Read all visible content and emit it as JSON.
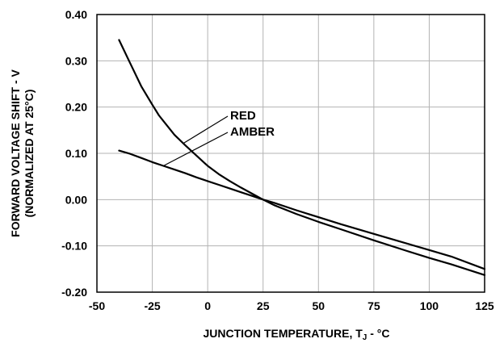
{
  "chart_data": {
    "type": "line",
    "xlabel_main": "JUNCTION TEMPERATURE, T",
    "xlabel_subscript": "J",
    "xlabel_suffix": " - °C",
    "ylabel_line1": "FORWARD VOLTAGE SHIFT - V",
    "ylabel_line2": "(NORMALIZED AT 25°C)",
    "xlim": [
      -50,
      125
    ],
    "ylim": [
      -0.2,
      0.4
    ],
    "x_ticks": [
      -50,
      -25,
      0,
      25,
      50,
      75,
      100,
      125
    ],
    "x_tick_labels": [
      "-50",
      "-25",
      "0",
      "25",
      "50",
      "75",
      "100",
      "125"
    ],
    "y_ticks": [
      -0.2,
      -0.1,
      0.0,
      0.1,
      0.2,
      0.3,
      0.4
    ],
    "y_tick_labels": [
      "-0.20",
      "-0.10",
      "0.00",
      "0.10",
      "0.20",
      "0.30",
      "0.40"
    ],
    "grid": true,
    "series": [
      {
        "name": "RED",
        "x": [
          -40,
          -35,
          -30,
          -25,
          -22,
          -20,
          -15,
          -10,
          -5,
          0,
          5,
          10,
          15,
          20,
          25,
          30,
          40,
          50,
          60,
          75,
          90,
          100,
          110,
          125
        ],
        "y": [
          0.345,
          0.295,
          0.245,
          0.205,
          0.182,
          0.17,
          0.14,
          0.117,
          0.095,
          0.073,
          0.055,
          0.04,
          0.026,
          0.013,
          0.0,
          -0.012,
          -0.031,
          -0.048,
          -0.064,
          -0.088,
          -0.111,
          -0.126,
          -0.14,
          -0.163
        ]
      },
      {
        "name": "AMBER",
        "x": [
          -40,
          -35,
          -30,
          -25,
          -20,
          -15,
          -10,
          -5,
          0,
          5,
          10,
          15,
          20,
          25,
          30,
          40,
          50,
          60,
          75,
          90,
          100,
          110,
          125
        ],
        "y": [
          0.106,
          0.099,
          0.09,
          0.081,
          0.073,
          0.065,
          0.057,
          0.048,
          0.04,
          0.032,
          0.024,
          0.016,
          0.008,
          0.0,
          -0.007,
          -0.023,
          -0.038,
          -0.053,
          -0.074,
          -0.095,
          -0.109,
          -0.123,
          -0.15
        ]
      }
    ]
  }
}
